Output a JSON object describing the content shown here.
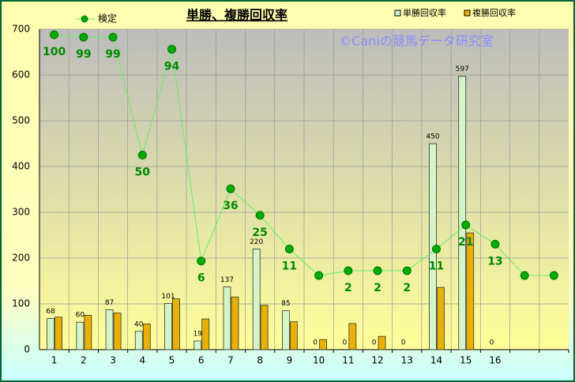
{
  "chart_data": {
    "type": "bar",
    "title": "単勝、複勝回収率",
    "annotation": "©Caniの競馬データ研究室",
    "categories": [
      "1",
      "2",
      "3",
      "4",
      "5",
      "6",
      "7",
      "8",
      "9",
      "10",
      "11",
      "12",
      "13",
      "14",
      "15",
      "16",
      null,
      null
    ],
    "series": [
      {
        "name": "単勝回収率",
        "color": "#d4f5c8",
        "values": [
          68,
          60,
          87,
          40,
          101,
          19,
          137,
          220,
          85,
          0,
          0,
          0,
          0,
          450,
          597,
          0,
          null,
          null
        ]
      },
      {
        "name": "複勝回収率",
        "color": "#e8b000",
        "values": [
          71,
          75,
          80,
          56,
          111,
          67,
          115,
          97,
          61,
          22,
          57,
          29,
          0,
          136,
          255,
          0,
          null,
          null
        ]
      },
      {
        "name": "検定",
        "type": "line",
        "axis": "y2",
        "color": "#00aa00",
        "values": [
          100,
          99,
          99,
          50,
          94,
          6,
          36,
          25,
          11,
          0,
          2,
          2,
          2,
          11,
          21,
          13,
          0,
          0
        ],
        "value_labels": [
          "100",
          "99",
          "99",
          "50",
          "94",
          "6",
          "36",
          "25",
          "11",
          null,
          "2",
          "2",
          "2",
          "11",
          "21",
          "13",
          null,
          null
        ]
      }
    ],
    "ylim": [
      0,
      700
    ],
    "yticks": [
      0,
      100,
      200,
      300,
      400,
      500,
      600,
      700
    ],
    "y2lim": [
      -30.8,
      102.3
    ],
    "grid": true
  }
}
